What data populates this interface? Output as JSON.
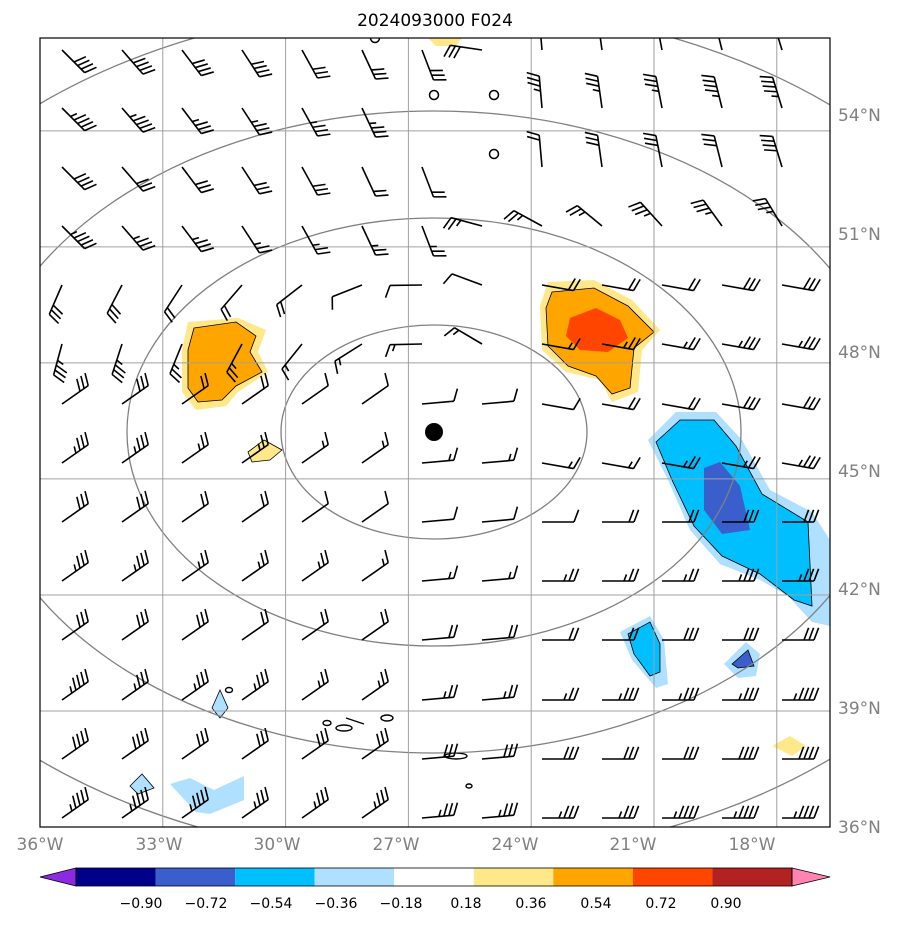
{
  "title": "2024093000 F024",
  "map": {
    "lon_range": [
      -36,
      -16.7
    ],
    "lat_range": [
      36,
      56.4
    ],
    "lat_labels": [
      "54°N",
      "51°N",
      "48°N",
      "45°N",
      "42°N",
      "39°N",
      "36°N"
    ],
    "lon_labels": [
      "36°W",
      "33°W",
      "30°W",
      "27°W",
      "24°W",
      "21°W",
      "18°W"
    ],
    "storm_center": {
      "lon": -26.0,
      "lat": 46.0
    },
    "range_ring_count": 4,
    "barb_color": "#000000",
    "grid_color": "#a0a0a0",
    "ring_color": "#808080"
  },
  "colorbar": {
    "labels": [
      "−0.90",
      "−0.72",
      "−0.54",
      "−0.36",
      "−0.18",
      "0.18",
      "0.36",
      "0.54",
      "0.72",
      "0.90"
    ],
    "colors": [
      "#8a2be2",
      "#00008b",
      "#3a5fcd",
      "#00bfff",
      "#b0e0ff",
      "#ffffff",
      "#ffe88a",
      "#ffa500",
      "#ff4500",
      "#b22222",
      "#ff85b0"
    ]
  },
  "shaded_regions": [
    {
      "name": "positive-anomaly-west",
      "level": "0.54",
      "color": "#ffa500"
    },
    {
      "name": "positive-anomaly-east",
      "level": "0.72",
      "color": "#ff4500"
    },
    {
      "name": "negative-anomaly-southeast",
      "level": "-0.72",
      "color": "#3a5fcd"
    }
  ]
}
